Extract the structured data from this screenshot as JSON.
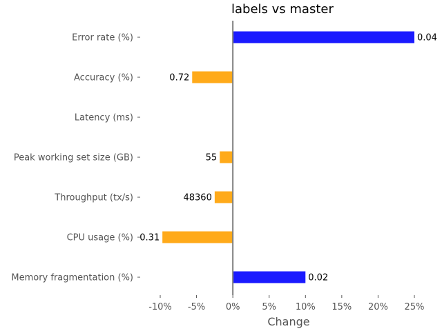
{
  "chart_data": {
    "type": "bar",
    "orientation": "horizontal",
    "title": "labels vs master",
    "xlabel": "Change",
    "ylabel": "",
    "xlim": [
      -0.1,
      0.25
    ],
    "xticks": [
      -0.1,
      -0.05,
      0,
      0.05,
      0.1,
      0.15,
      0.2,
      0.25
    ],
    "xtick_labels": [
      "-10%",
      "-5%",
      "0%",
      "5%",
      "10%",
      "15%",
      "20%",
      "25%"
    ],
    "grid": false,
    "categories": [
      "Error rate (%)",
      "Accuracy (%)",
      "Latency (ms)",
      "Peak working set size (GB)",
      "Throughput (tx/s)",
      "CPU usage (%)",
      "Memory fragmentation (%)"
    ],
    "values": [
      0.25,
      -0.056,
      0,
      -0.018,
      -0.025,
      -0.097,
      0.1
    ],
    "data_labels": [
      "0.04",
      "0.72",
      "",
      "55",
      "48360",
      "0.31",
      "0.02"
    ],
    "colors": {
      "positive": "#1a1aff",
      "negative": "#ffaa1a",
      "zero_line": "#808080"
    }
  }
}
